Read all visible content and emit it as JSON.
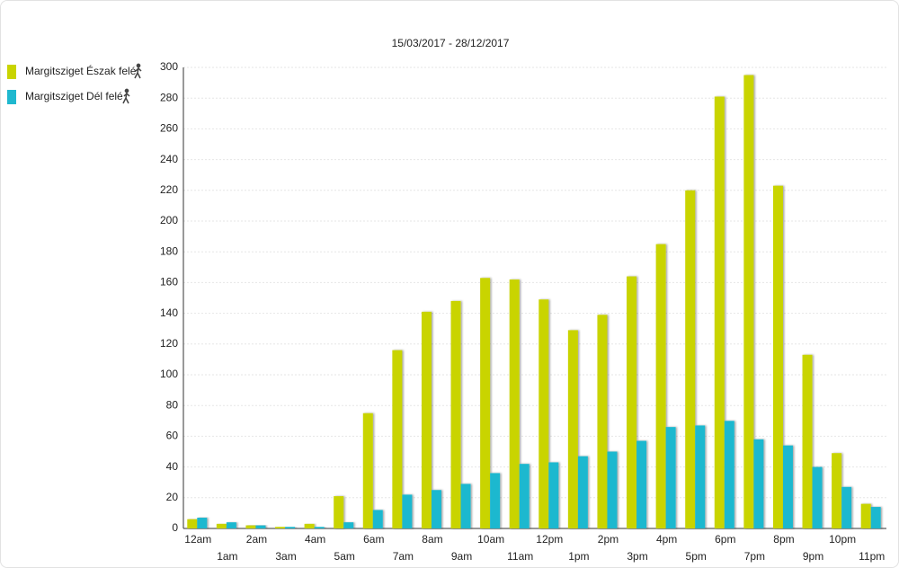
{
  "chart_data": {
    "type": "bar",
    "title": "15/03/2017 - 28/12/2017",
    "categories": [
      "12am",
      "1am",
      "2am",
      "3am",
      "4am",
      "5am",
      "6am",
      "7am",
      "8am",
      "9am",
      "10am",
      "11am",
      "12pm",
      "1pm",
      "2pm",
      "3pm",
      "4pm",
      "5pm",
      "6pm",
      "7pm",
      "8pm",
      "9pm",
      "10pm",
      "11pm"
    ],
    "series": [
      {
        "name": "Margitsziget Észak felé",
        "color": "#c9d400",
        "values": [
          6,
          3,
          2,
          1,
          3,
          21,
          75,
          116,
          141,
          148,
          163,
          162,
          149,
          129,
          139,
          164,
          185,
          220,
          281,
          295,
          223,
          113,
          49,
          16
        ]
      },
      {
        "name": "Margitsziget Dél felé",
        "color": "#1fb8cf",
        "values": [
          7,
          4,
          2,
          1,
          1,
          4,
          12,
          22,
          25,
          29,
          36,
          42,
          43,
          47,
          50,
          57,
          66,
          67,
          70,
          58,
          54,
          40,
          27,
          14
        ]
      }
    ],
    "ylim": [
      0,
      300
    ],
    "yticks": [
      0,
      20,
      40,
      60,
      80,
      100,
      120,
      140,
      160,
      180,
      200,
      220,
      240,
      260,
      280,
      300
    ],
    "grid": true
  }
}
